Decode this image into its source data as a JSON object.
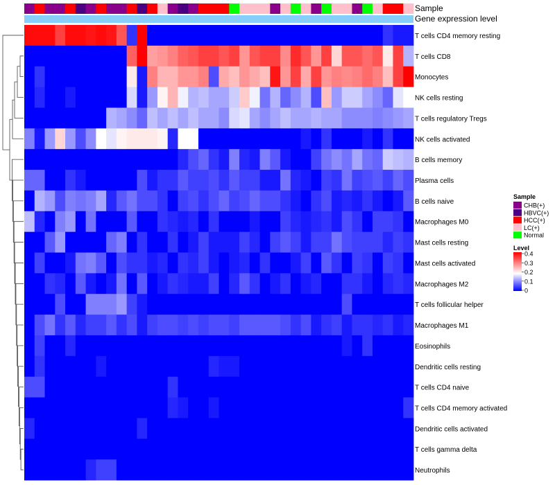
{
  "chart_data": {
    "type": "heatmap",
    "samples": [
      "CHB(+)",
      "HCC(+)",
      "CHB(+)",
      "CHB(+)",
      "HCC(+)",
      "HBVC(+)",
      "CHB(+)",
      "HCC(+)",
      "CHB(+)",
      "CHB(+)",
      "HCC(+)",
      "HBVC(+)",
      "HCC(+)",
      "LC(+)",
      "CHB(+)",
      "HBVC(+)",
      "CHB(+)",
      "HCC(+)",
      "HCC(+)",
      "HCC(+)",
      "Normal",
      "LC(+)",
      "LC(+)",
      "LC(+)",
      "CHB(+)",
      "LC(+)",
      "Normal",
      "LC(+)",
      "CHB(+)",
      "Normal",
      "LC(+)",
      "LC(+)",
      "CHB(+)",
      "Normal",
      "LC(+)",
      "HCC(+)",
      "HCC(+)",
      "LC(+)"
    ],
    "annotation_labels": {
      "sample": "Sample",
      "gene": "Gene expression level"
    },
    "rows": [
      "T cells CD4 memory resting",
      "T cells CD8",
      "Monocytes",
      "NK cells resting",
      "T cells regulatory  Tregs",
      "NK cells activated",
      "B cells memory",
      "Plasma cells",
      "B cells naive",
      "Macrophages M0",
      "Mast cells resting",
      "Mast cells activated",
      "Macrophages M2",
      "T cells follicular helper",
      "Macrophages M1",
      "Eosinophils",
      "Dendritic cells resting",
      "T cells CD4 naive",
      "T cells CD4 memory activated",
      "Dendritic cells activated",
      "T cells gamma delta",
      "Neutrophils"
    ],
    "values": [
      [
        0.43,
        0.43,
        0.43,
        0.38,
        0.43,
        0.43,
        0.42,
        0.43,
        0.42,
        0.36,
        0.04,
        0.44,
        0,
        0,
        0,
        0,
        0,
        0,
        0,
        0,
        0,
        0,
        0,
        0,
        0,
        0,
        0,
        0,
        0,
        0,
        0,
        0,
        0,
        0,
        0,
        0.04,
        0.02,
        0.02
      ],
      [
        0,
        0,
        0,
        0,
        0,
        0,
        0,
        0,
        0,
        0,
        0.35,
        0.44,
        0.29,
        0.3,
        0.32,
        0.35,
        0.36,
        0.38,
        0.38,
        0.36,
        0.38,
        0.3,
        0.36,
        0.38,
        0.38,
        0.31,
        0.4,
        0.36,
        0.3,
        0.38,
        0.24,
        0.36,
        0.36,
        0.34,
        0.36,
        0.22,
        0.38,
        0.14
      ],
      [
        0,
        0.04,
        0,
        0,
        0,
        0,
        0,
        0,
        0,
        0,
        0.22,
        0.02,
        0.32,
        0.27,
        0.27,
        0.3,
        0.3,
        0.32,
        0.06,
        0.28,
        0.26,
        0.3,
        0.28,
        0.26,
        0.42,
        0.3,
        0.38,
        0.28,
        0.38,
        0.3,
        0.32,
        0.31,
        0.32,
        0.34,
        0.32,
        0.26,
        0.38,
        0.44
      ],
      [
        0,
        0.03,
        0,
        0,
        0.02,
        0,
        0,
        0,
        0,
        0,
        0.17,
        0.02,
        0.12,
        0.21,
        0.27,
        0.19,
        0.14,
        0.15,
        0.13,
        0.13,
        0.16,
        0.25,
        0.19,
        0.09,
        0.14,
        0.08,
        0.11,
        0.14,
        0.06,
        0.26,
        0.12,
        0.16,
        0.16,
        0.13,
        0.11,
        0.08,
        0.18,
        0.2
      ],
      [
        0,
        0,
        0,
        0,
        0,
        0,
        0,
        0,
        0.14,
        0.13,
        0.11,
        0.08,
        0.15,
        0.13,
        0.15,
        0.13,
        0.15,
        0.13,
        0.13,
        0.11,
        0.17,
        0.18,
        0.13,
        0.11,
        0.13,
        0.15,
        0.13,
        0.13,
        0.14,
        0.13,
        0.13,
        0.11,
        0.11,
        0.11,
        0.1,
        0.11,
        0.12,
        0.13
      ],
      [
        0.1,
        0.02,
        0.12,
        0.24,
        0.12,
        0.06,
        0.11,
        0.2,
        0.18,
        0.21,
        0.22,
        0.22,
        0.22,
        0.21,
        0.03,
        0.2,
        0.2,
        0,
        0,
        0,
        0,
        0,
        0,
        0,
        0,
        0,
        0,
        0.02,
        0,
        0.04,
        0,
        0,
        0,
        0.02,
        0,
        0.04,
        0,
        0
      ],
      [
        0,
        0,
        0,
        0,
        0,
        0,
        0,
        0,
        0,
        0,
        0,
        0,
        0,
        0,
        0,
        0.03,
        0.06,
        0.08,
        0.04,
        0.02,
        0.1,
        0.03,
        0.02,
        0.1,
        0.07,
        0.02,
        0,
        0,
        0.05,
        0.09,
        0.11,
        0.09,
        0.13,
        0.09,
        0.08,
        0.16,
        0.15,
        0.14
      ],
      [
        0.08,
        0.08,
        0,
        0,
        0.04,
        0.02,
        0,
        0,
        0,
        0,
        0,
        0.06,
        0.02,
        0.04,
        0.04,
        0.07,
        0.05,
        0.05,
        0.06,
        0.04,
        0.07,
        0.05,
        0.05,
        0.02,
        0.02,
        0.09,
        0.03,
        0.02,
        0,
        0.05,
        0.04,
        0.09,
        0.05,
        0.06,
        0.07,
        0.05,
        0.08,
        0.06
      ],
      [
        0,
        0.14,
        0.12,
        0.06,
        0.1,
        0.09,
        0.1,
        0.13,
        0.03,
        0.07,
        0.09,
        0.06,
        0.06,
        0.04,
        0,
        0.05,
        0.06,
        0.04,
        0.06,
        0.08,
        0.05,
        0.06,
        0.08,
        0.06,
        0.06,
        0.04,
        0.02,
        0,
        0.04,
        0.06,
        0.02,
        0.03,
        0.02,
        0.04,
        0.02,
        0,
        0.02,
        0.07
      ],
      [
        0.15,
        0.03,
        0,
        0.1,
        0.12,
        0,
        0.09,
        0,
        0,
        0,
        0.07,
        0,
        0,
        0.04,
        0.03,
        0.02,
        0.03,
        0,
        0.04,
        0,
        0,
        0,
        0.02,
        0,
        0,
        0.05,
        0.03,
        0.02,
        0.03,
        0.04,
        0.02,
        0.06,
        0.04,
        0,
        0.05,
        0.05,
        0.04,
        0
      ],
      [
        0,
        0,
        0.07,
        0.12,
        0,
        0,
        0,
        0,
        0.08,
        0.1,
        0,
        0.04,
        0,
        0,
        0.04,
        0,
        0.02,
        0.05,
        0.02,
        0.02,
        0.02,
        0.05,
        0.03,
        0,
        0.05,
        0.07,
        0.05,
        0.02,
        0.05,
        0.05,
        0.09,
        0.06,
        0.05,
        0.05,
        0.05,
        0.03,
        0.05,
        0.04
      ],
      [
        0,
        0.05,
        0,
        0,
        0.02,
        0.09,
        0.1,
        0.07,
        0,
        0.06,
        0.04,
        0.04,
        0.02,
        0.03,
        0,
        0.04,
        0.03,
        0.05,
        0.02,
        0,
        0.02,
        0.03,
        0,
        0.04,
        0,
        0,
        0.02,
        0.05,
        0,
        0.07,
        0.04,
        0,
        0.05,
        0.04,
        0,
        0.05,
        0.04,
        0
      ],
      [
        0,
        0,
        0.04,
        0.03,
        0,
        0.07,
        0.02,
        0,
        0.02,
        0.09,
        0,
        0.07,
        0,
        0.02,
        0.04,
        0.03,
        0.02,
        0.02,
        0.05,
        0,
        0.03,
        0.07,
        0.04,
        0,
        0.02,
        0.04,
        0,
        0.02,
        0.03,
        0,
        0,
        0.04,
        0.04,
        0.02,
        0,
        0.03,
        0.04,
        0.03
      ],
      [
        0,
        0,
        0,
        0.06,
        0,
        0,
        0.1,
        0.1,
        0.1,
        0.12,
        0.05,
        0.02,
        0,
        0,
        0,
        0,
        0,
        0,
        0,
        0,
        0,
        0,
        0,
        0,
        0,
        0,
        0,
        0,
        0,
        0,
        0,
        0.06,
        0,
        0,
        0,
        0,
        0,
        0
      ],
      [
        0,
        0.06,
        0.09,
        0.04,
        0.07,
        0.03,
        0.05,
        0.05,
        0.07,
        0.04,
        0.06,
        0.02,
        0.05,
        0.06,
        0.06,
        0.05,
        0.06,
        0.05,
        0.06,
        0.06,
        0.05,
        0.07,
        0.07,
        0.07,
        0.07,
        0.06,
        0.04,
        0.06,
        0.02,
        0.04,
        0.05,
        0.02,
        0.04,
        0.04,
        0.03,
        0.04,
        0.02,
        0.03
      ],
      [
        0,
        0.05,
        0,
        0,
        0.03,
        0,
        0,
        0,
        0,
        0,
        0,
        0,
        0,
        0,
        0,
        0,
        0,
        0,
        0,
        0,
        0,
        0,
        0,
        0,
        0,
        0,
        0,
        0,
        0,
        0,
        0,
        0.02,
        0,
        0.04,
        0,
        0,
        0,
        0
      ],
      [
        0,
        0.04,
        0,
        0,
        0,
        0,
        0,
        0.02,
        0,
        0,
        0,
        0,
        0,
        0,
        0,
        0,
        0,
        0,
        0.03,
        0.02,
        0.02,
        0,
        0,
        0,
        0,
        0,
        0,
        0,
        0,
        0,
        0,
        0,
        0,
        0,
        0,
        0,
        0,
        0
      ],
      [
        0.06,
        0.06,
        0,
        0,
        0,
        0,
        0,
        0,
        0,
        0,
        0,
        0,
        0,
        0,
        0.04,
        0,
        0,
        0,
        0,
        0,
        0,
        0,
        0,
        0,
        0,
        0,
        0,
        0,
        0,
        0,
        0,
        0,
        0,
        0,
        0,
        0,
        0,
        0
      ],
      [
        0,
        0,
        0,
        0,
        0,
        0,
        0,
        0,
        0,
        0,
        0,
        0,
        0,
        0,
        0.03,
        0.02,
        0,
        0,
        0.02,
        0,
        0,
        0,
        0,
        0,
        0,
        0,
        0,
        0,
        0,
        0,
        0,
        0,
        0,
        0,
        0,
        0,
        0,
        0.04
      ],
      [
        0.03,
        0,
        0,
        0,
        0,
        0,
        0,
        0,
        0,
        0,
        0,
        0.03,
        0,
        0,
        0,
        0,
        0,
        0,
        0,
        0,
        0,
        0,
        0,
        0,
        0,
        0,
        0,
        0,
        0,
        0,
        0,
        0,
        0,
        0,
        0,
        0,
        0,
        0
      ],
      [
        0,
        0,
        0,
        0,
        0,
        0,
        0,
        0,
        0,
        0,
        0,
        0,
        0,
        0,
        0,
        0,
        0,
        0,
        0,
        0,
        0,
        0,
        0,
        0,
        0,
        0,
        0,
        0,
        0,
        0,
        0,
        0,
        0,
        0,
        0,
        0,
        0,
        0
      ],
      [
        0,
        0,
        0,
        0,
        0,
        0,
        0.03,
        0.05,
        0.05,
        0,
        0,
        0,
        0,
        0,
        0,
        0,
        0,
        0,
        0,
        0,
        0,
        0,
        0,
        0,
        0,
        0,
        0,
        0,
        0,
        0,
        0,
        0,
        0,
        0,
        0,
        0,
        0,
        0
      ]
    ],
    "legend": {
      "sample_title": "Sample",
      "sample_entries": [
        {
          "label": "CHB(+)",
          "color": "#8B008B"
        },
        {
          "label": "HBVC(+)",
          "color": "#4B0082"
        },
        {
          "label": "HCC(+)",
          "color": "#FF0000"
        },
        {
          "label": "LC(+)",
          "color": "#FFC0CB"
        },
        {
          "label": "Normal",
          "color": "#00FF00"
        }
      ],
      "level_title": "Level",
      "level_ticks": [
        "0.4",
        "0.3",
        "0.2",
        "0.1",
        "0"
      ],
      "level_tick_values": [
        0.4,
        0.3,
        0.2,
        0.1,
        0
      ]
    },
    "gene_bar_color": "#87CEFA",
    "color_scale": {
      "low": "#0000FF",
      "mid": "#FFFFFF",
      "high": "#FF0000",
      "min": 0,
      "mid_value": 0.2,
      "max": 0.44
    }
  }
}
